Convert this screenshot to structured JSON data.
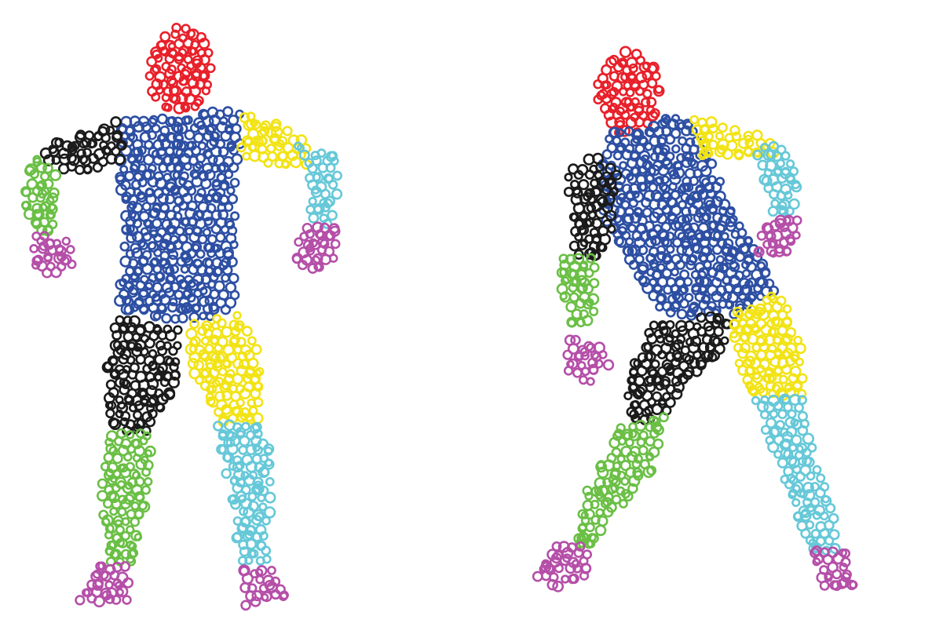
{
  "figures": [
    {
      "id": "standing",
      "description_name": "figure-frontal-standing",
      "parts": [
        {
          "name": "head",
          "color_key": "head"
        },
        {
          "name": "torso",
          "color_key": "torso"
        },
        {
          "name": "upper-arm-right",
          "color_key": "upper_arm_right"
        },
        {
          "name": "forearm-right",
          "color_key": "forearm_right"
        },
        {
          "name": "hand-right",
          "color_key": "hand"
        },
        {
          "name": "upper-arm-left",
          "color_key": "upper_arm_left"
        },
        {
          "name": "forearm-left",
          "color_key": "forearm_left"
        },
        {
          "name": "hand-left",
          "color_key": "hand"
        },
        {
          "name": "thigh-right",
          "color_key": "thigh_right"
        },
        {
          "name": "shin-right",
          "color_key": "shin_right"
        },
        {
          "name": "foot-right",
          "color_key": "hand"
        },
        {
          "name": "thigh-left",
          "color_key": "thigh_left"
        },
        {
          "name": "shin-left",
          "color_key": "shin_left"
        },
        {
          "name": "foot-left",
          "color_key": "hand"
        }
      ]
    },
    {
      "id": "twisting",
      "description_name": "figure-twisting-stride",
      "parts": [
        {
          "name": "head",
          "color_key": "head"
        },
        {
          "name": "torso",
          "color_key": "torso"
        },
        {
          "name": "upper-arm-right",
          "color_key": "upper_arm_right"
        },
        {
          "name": "forearm-right",
          "color_key": "forearm_right"
        },
        {
          "name": "hand-right",
          "color_key": "hand"
        },
        {
          "name": "upper-arm-left",
          "color_key": "upper_arm_left"
        },
        {
          "name": "forearm-left",
          "color_key": "forearm_left"
        },
        {
          "name": "hand-left",
          "color_key": "hand"
        },
        {
          "name": "thigh-right",
          "color_key": "thigh_right"
        },
        {
          "name": "shin-right",
          "color_key": "shin_right"
        },
        {
          "name": "foot-right",
          "color_key": "hand"
        },
        {
          "name": "thigh-left",
          "color_key": "thigh_left"
        },
        {
          "name": "shin-left",
          "color_key": "shin_left"
        },
        {
          "name": "foot-left",
          "color_key": "hand"
        }
      ]
    }
  ],
  "colors": {
    "background": "#ffffff",
    "head": "#e8202a",
    "torso": "#2d4fa3",
    "upper_arm_right": "#1b1b1b",
    "forearm_right": "#6abf45",
    "upper_arm_left": "#f2e316",
    "forearm_left": "#66c8d8",
    "hand": "#b54fa8",
    "thigh_right": "#1b1b1b",
    "shin_right": "#6abf45",
    "thigh_left": "#f2e316",
    "shin_left": "#66c8d8"
  }
}
